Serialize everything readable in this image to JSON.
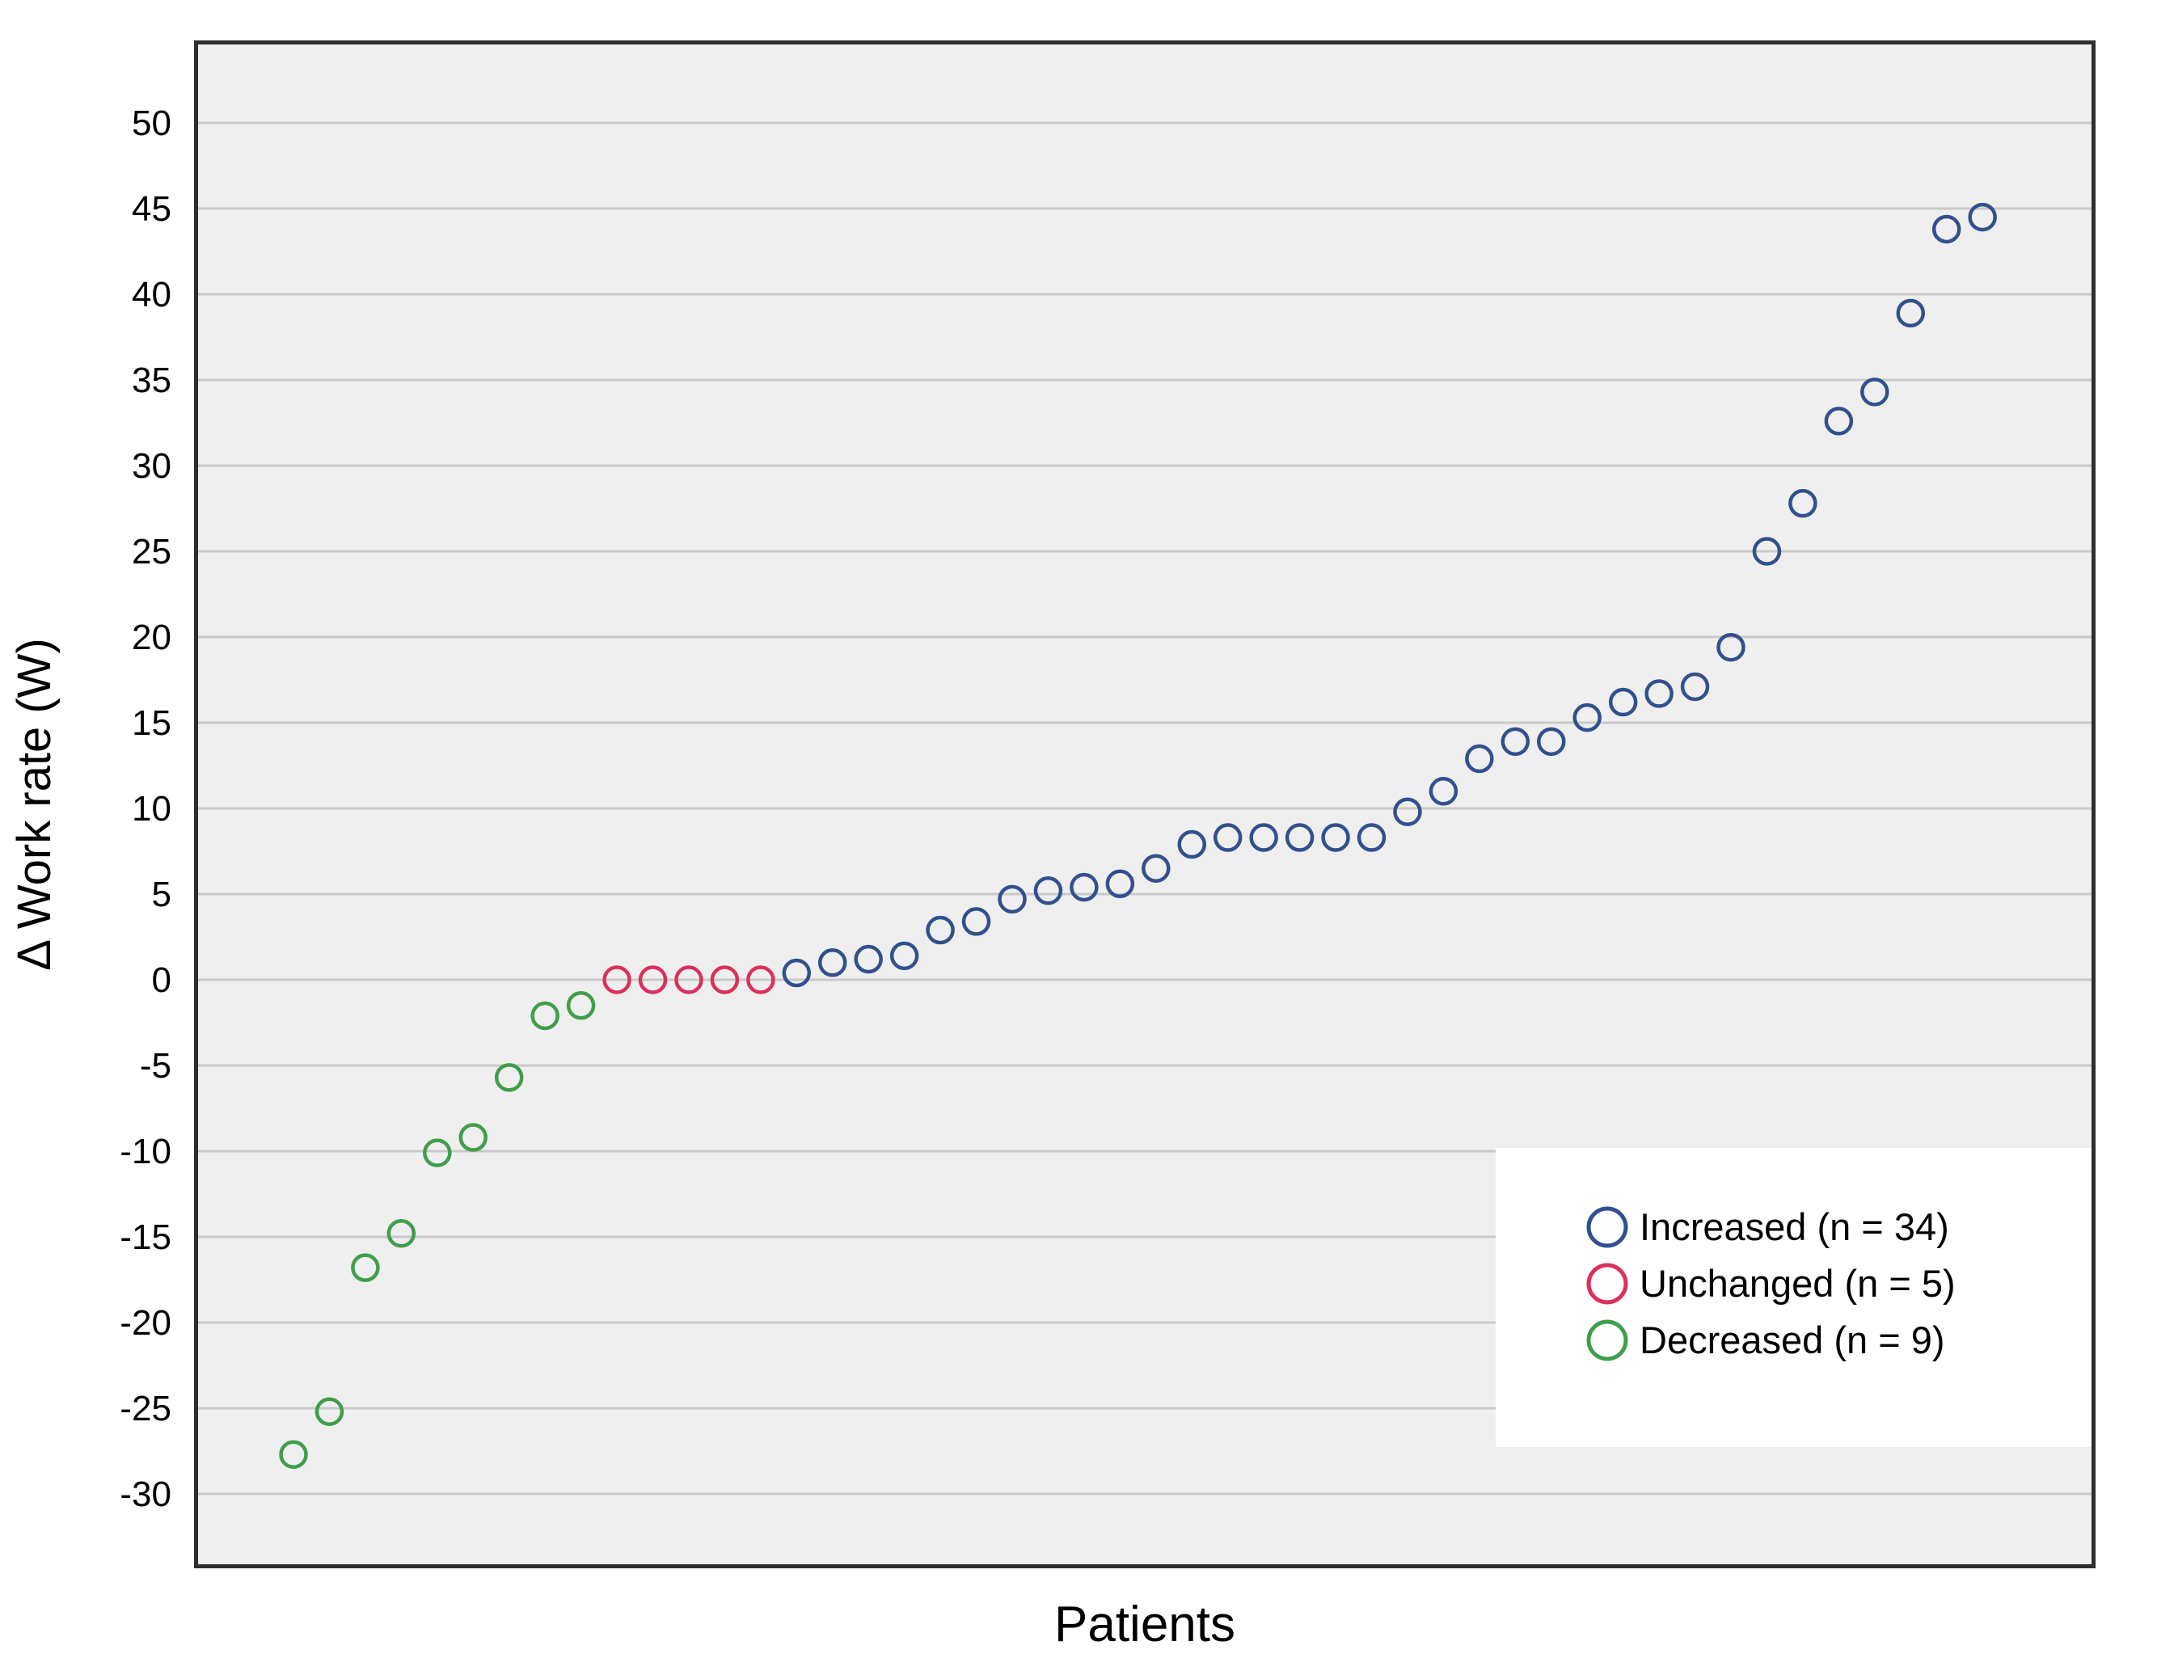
{
  "chart_data": {
    "type": "scatter",
    "title": "",
    "xlabel": "Patients",
    "ylabel": "Δ Work rate (W)",
    "yticks": [
      50,
      45,
      40,
      35,
      30,
      25,
      20,
      15,
      10,
      5,
      0,
      -5,
      -10,
      -15,
      -20,
      -25,
      -30
    ],
    "ylim": [
      -34.3,
      54.8
    ],
    "grid": "horizontal-every-5",
    "x_tick_labels": "none",
    "point_order": "sorted ascending left to right",
    "total_points": 48,
    "series": [
      {
        "name": "Decreased",
        "legend_label": "Decreased (n = 9)",
        "n": 9,
        "color": "#3f9e4a",
        "values": [
          -27.7,
          -25.2,
          -16.8,
          -14.8,
          -10.1,
          -9.2,
          -5.7,
          -2.1,
          -1.5
        ]
      },
      {
        "name": "Unchanged",
        "legend_label": "Unchanged (n = 5)",
        "n": 5,
        "color": "#dc2f5c",
        "values": [
          0,
          0,
          0,
          0,
          0
        ]
      },
      {
        "name": "Increased",
        "legend_label": "Increased (n = 34)",
        "n": 34,
        "color": "#32508e",
        "values": [
          0.4,
          1.0,
          1.2,
          1.4,
          2.9,
          3.4,
          4.7,
          5.2,
          5.4,
          5.6,
          6.5,
          7.9,
          8.3,
          8.3,
          8.3,
          8.3,
          8.3,
          9.8,
          11.0,
          12.9,
          13.9,
          13.9,
          15.3,
          16.2,
          16.7,
          17.1,
          19.4,
          25.0,
          27.8,
          32.6,
          34.3,
          38.9,
          43.8,
          44.5
        ]
      }
    ],
    "legend": {
      "position": "lower-right",
      "items": [
        {
          "label": "Increased (n = 34)",
          "color": "#32508e"
        },
        {
          "label": "Unchanged (n = 5)",
          "color": "#dc2f5c"
        },
        {
          "label": "Decreased (n = 9)",
          "color": "#3f9e4a"
        }
      ]
    },
    "colors": {
      "plot_background": "#efefef",
      "gridline": "#c9c9c9",
      "frame": "#2e2e2e",
      "text": "#000000",
      "legend_background": "#ffffff",
      "page_background": "#ffffff"
    }
  }
}
